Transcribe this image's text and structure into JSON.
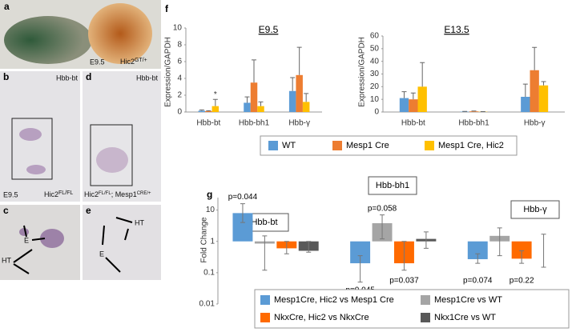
{
  "panels": {
    "a": {
      "label": "a",
      "stage": "E9.5",
      "genotype": "Hic2",
      "genotype_sup": "GT/+"
    },
    "b": {
      "label": "b",
      "probe": "Hbb-bt",
      "stage": "E9.5",
      "genotype": "Hic2",
      "genotype_sup": "FL/FL"
    },
    "c": {
      "label": "c",
      "marks": [
        "E",
        "HT"
      ]
    },
    "d": {
      "label": "d",
      "probe": "Hbb-bt",
      "genotype": "Hic2",
      "genotype_sup": "FL/FL",
      "genotype2": "; Mesp1",
      "genotype2_sup": "CRE/+"
    },
    "e": {
      "label": "e",
      "marks": [
        "HT",
        "E"
      ]
    },
    "f": {
      "label": "f"
    },
    "g": {
      "label": "g"
    }
  },
  "chart_data": [
    {
      "type": "bar",
      "title": "E9.5",
      "y_label": "Expression/GAPDH",
      "categories": [
        "Hbb-bt",
        "Hbb-bh1",
        "Hbb-γ"
      ],
      "series": [
        {
          "name": "WT",
          "color": "#5b9bd5",
          "values": [
            0.15,
            1.1,
            2.5
          ],
          "errors": [
            0.1,
            0.7,
            1.6
          ]
        },
        {
          "name": "Mesp1 Cre",
          "color": "#ed7d31",
          "values": [
            0.1,
            3.5,
            4.4
          ],
          "errors": [
            0.05,
            2.7,
            3.3
          ]
        },
        {
          "name": "Mesp1 Cre, Hic2",
          "color": "#ffc000",
          "values": [
            0.7,
            0.7,
            1.2
          ],
          "errors": [
            0.8,
            0.5,
            1.0
          ]
        }
      ],
      "annotations": [
        "*"
      ],
      "ylim": [
        0,
        10
      ],
      "yticks": [
        0,
        2,
        4,
        6,
        8,
        10
      ]
    },
    {
      "type": "bar",
      "title": "E13.5",
      "y_label": "Expression/GAPDH",
      "categories": [
        "Hbb-bt",
        "Hbb-bh1",
        "Hbb-γ"
      ],
      "series": [
        {
          "color": "#5b9bd5",
          "values": [
            11,
            0.3,
            12
          ],
          "errors": [
            5,
            0.2,
            10
          ]
        },
        {
          "color": "#ed7d31",
          "values": [
            10,
            0.5,
            33
          ],
          "errors": [
            5,
            0.3,
            18
          ]
        },
        {
          "color": "#ffc000",
          "values": [
            20,
            0.2,
            21
          ],
          "errors": [
            19,
            0.1,
            3
          ]
        }
      ],
      "ylim": [
        0,
        60
      ],
      "yticks": [
        0,
        10,
        20,
        30,
        40,
        50,
        60
      ]
    },
    {
      "type": "logbar",
      "y_label": "Fold Change",
      "log_scale": true,
      "categories": [
        "Hbb-bt",
        "Hbb-bh1",
        "Hbb-γ"
      ],
      "series": [
        {
          "name": "Mesp1Cre, Hic2 vs Mesp1 Cre",
          "color": "#5b9bd5",
          "values": [
            8,
            0.2,
            0.27
          ],
          "error_ranges": [
            [
              4,
              16
            ],
            [
              0.05,
              0.35
            ],
            [
              0.2,
              0.4
            ]
          ]
        },
        {
          "name": "Mesp1Cre vs WT",
          "color": "#a5a5a5",
          "values": [
            0.85,
            3.8,
            1.5
          ],
          "error_ranges": [
            [
              0.12,
              1.5
            ],
            [
              1.2,
              7
            ],
            [
              0.35,
              2.7
            ]
          ]
        },
        {
          "name": "NkxCre, Hic2 vs NkxCre",
          "color": "#ff6a00",
          "values": [
            0.6,
            0.2,
            0.28
          ],
          "error_ranges": [
            [
              0.4,
              1
            ],
            [
              0.12,
              1
            ],
            [
              0.2,
              0.5
            ]
          ]
        },
        {
          "name": "Nkx1Cre vs WT",
          "color": "#595959",
          "values": [
            0.5,
            1.2,
            1.0
          ],
          "error_ranges": [
            [
              0.45,
              1
            ],
            [
              0.6,
              2
            ],
            [
              0.15,
              1.7
            ]
          ]
        }
      ],
      "annotations": [
        "p=0.044",
        "p=0.058",
        "p=0.045",
        "p=0.037",
        "p=0.074",
        "p=0.22"
      ],
      "ylim": [
        0.01,
        25
      ],
      "yticks": [
        0.01,
        0.1,
        1,
        10
      ]
    }
  ]
}
